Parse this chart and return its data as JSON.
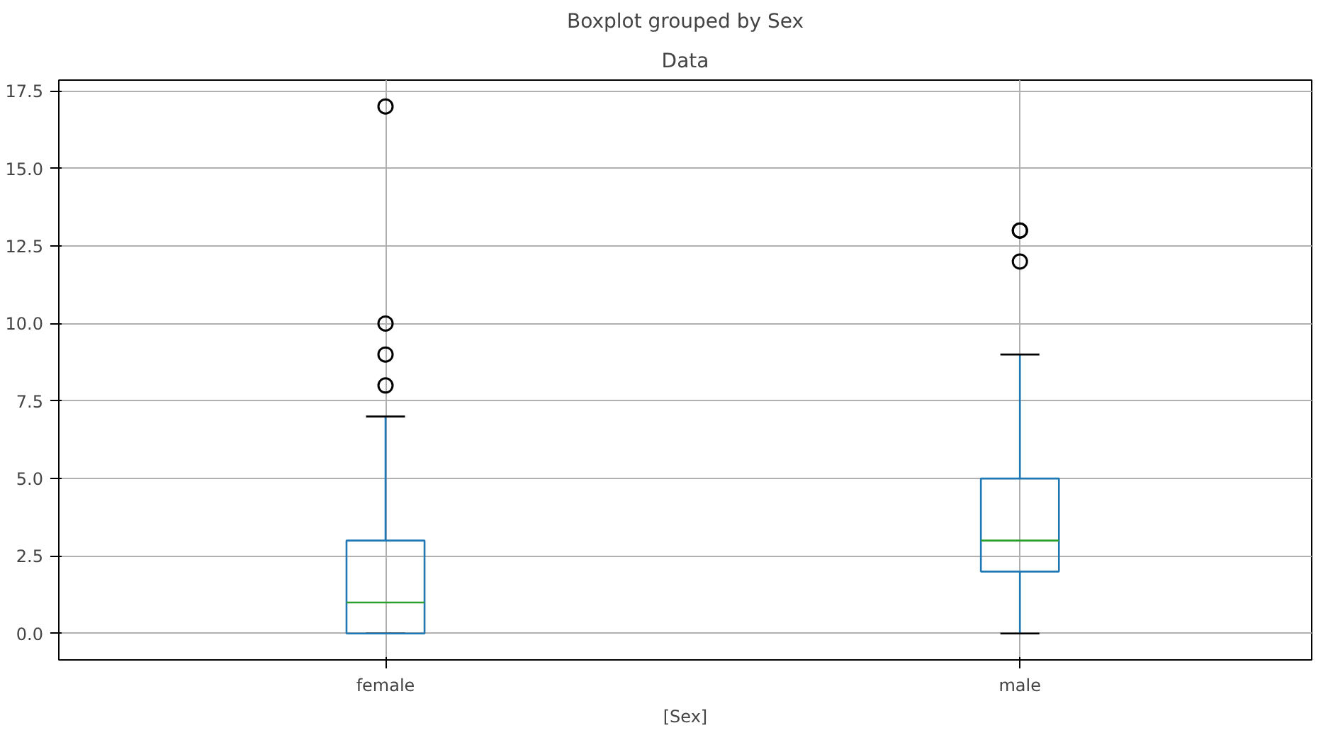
{
  "chart_data": {
    "type": "box",
    "title": "Boxplot grouped by Sex",
    "subtitle": "Data",
    "xlabel": "[Sex]",
    "categories": [
      "female",
      "male"
    ],
    "series": [
      {
        "color": "#1f77b4",
        "boxes": [
          {
            "low": 0,
            "q1": 0,
            "median": 1,
            "q3": 3,
            "high": 7,
            "outliers": [
              8,
              9,
              10,
              17
            ]
          },
          {
            "low": 0,
            "q1": 2,
            "median": 3,
            "q3": 5,
            "high": 9,
            "outliers": [
              12,
              13,
              13
            ]
          }
        ]
      }
    ],
    "ylim": [
      -0.85,
      17.85
    ],
    "yticks": [
      {
        "value": 0,
        "label": "0.0"
      },
      {
        "value": 2.5,
        "label": "2.5"
      },
      {
        "value": 5,
        "label": "5.0"
      },
      {
        "value": 7.5,
        "label": "7.5"
      },
      {
        "value": 10,
        "label": "10.0"
      },
      {
        "value": 12.5,
        "label": "12.5"
      },
      {
        "value": 15,
        "label": "15.0"
      },
      {
        "value": 17.5,
        "label": "17.5"
      }
    ],
    "grid": true,
    "marker": "circle"
  }
}
